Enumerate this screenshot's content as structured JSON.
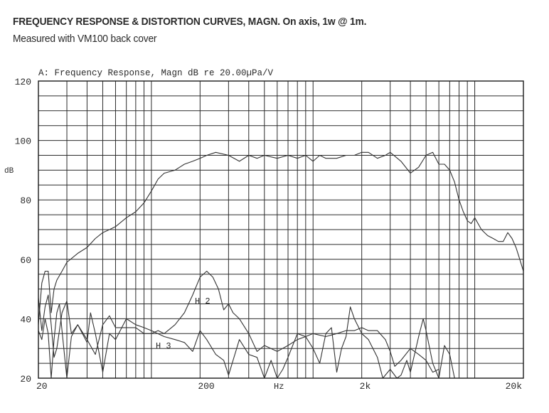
{
  "header": {
    "title": "FREQUENCY RESPONSE & DISTORTION CURVES, MAGN. On axis, 1w @ 1m.",
    "subtitle": "Measured with VM100 back cover"
  },
  "colors": {
    "curve": "#333333",
    "grid": "#2b2b2b",
    "text": "#2a2a2a"
  },
  "chart_data": {
    "type": "line",
    "title": "A: Frequency Response, Magn dB re 20.00µPa/V",
    "xlabel": "Hz",
    "ylabel": "dB",
    "xscale": "log",
    "xlim": [
      20,
      20000
    ],
    "ylim": [
      20,
      120
    ],
    "grid": true,
    "xticks": [
      {
        "value": 20,
        "label": "20"
      },
      {
        "value": 200,
        "label": "200"
      },
      {
        "value": 2000,
        "label": "2k"
      },
      {
        "value": 20000,
        "label": "20k"
      }
    ],
    "yticks": [
      {
        "value": 20,
        "label": "20"
      },
      {
        "value": 40,
        "label": "40"
      },
      {
        "value": 60,
        "label": "60"
      },
      {
        "value": 80,
        "label": "80"
      },
      {
        "value": 100,
        "label": "100"
      },
      {
        "value": 120,
        "label": "120"
      }
    ],
    "series": [
      {
        "values": [
          [
            20,
            38
          ],
          [
            21,
            52
          ],
          [
            22,
            56
          ],
          [
            23,
            56
          ],
          [
            24,
            42
          ],
          [
            25,
            50
          ],
          [
            26,
            53
          ],
          [
            28,
            56
          ],
          [
            30,
            59
          ],
          [
            35,
            62
          ],
          [
            40,
            64
          ],
          [
            45,
            67
          ],
          [
            50,
            69
          ],
          [
            55,
            70
          ],
          [
            60,
            71
          ],
          [
            70,
            74
          ],
          [
            80,
            76
          ],
          [
            90,
            79
          ],
          [
            100,
            83
          ],
          [
            110,
            87
          ],
          [
            120,
            89
          ],
          [
            140,
            90
          ],
          [
            160,
            92
          ],
          [
            180,
            93
          ],
          [
            200,
            94
          ],
          [
            220,
            95
          ],
          [
            250,
            96
          ],
          [
            300,
            95
          ],
          [
            350,
            93
          ],
          [
            400,
            95
          ],
          [
            450,
            94
          ],
          [
            500,
            95
          ],
          [
            600,
            94
          ],
          [
            700,
            95
          ],
          [
            800,
            94
          ],
          [
            900,
            95
          ],
          [
            1000,
            93
          ],
          [
            1100,
            95
          ],
          [
            1200,
            94
          ],
          [
            1400,
            94
          ],
          [
            1600,
            95
          ],
          [
            1800,
            95
          ],
          [
            2000,
            96
          ],
          [
            2200,
            96
          ],
          [
            2500,
            94
          ],
          [
            2800,
            95
          ],
          [
            3000,
            96
          ],
          [
            3500,
            93
          ],
          [
            4000,
            89
          ],
          [
            4500,
            91
          ],
          [
            5000,
            95
          ],
          [
            5500,
            96
          ],
          [
            6000,
            92
          ],
          [
            6500,
            92
          ],
          [
            7000,
            90
          ],
          [
            7500,
            86
          ],
          [
            8000,
            80
          ],
          [
            8500,
            76
          ],
          [
            9000,
            73
          ],
          [
            9500,
            72
          ],
          [
            10000,
            74
          ],
          [
            11000,
            70
          ],
          [
            12000,
            68
          ],
          [
            13000,
            67
          ],
          [
            14000,
            66
          ],
          [
            15000,
            66
          ],
          [
            16000,
            69
          ],
          [
            17000,
            67
          ],
          [
            18000,
            64
          ],
          [
            19000,
            60
          ],
          [
            20000,
            56
          ]
        ]
      },
      {
        "name": "H2",
        "values": [
          [
            20,
            47
          ],
          [
            21,
            36
          ],
          [
            22,
            44
          ],
          [
            23,
            48
          ],
          [
            24,
            38
          ],
          [
            25,
            27
          ],
          [
            26,
            30
          ],
          [
            28,
            42
          ],
          [
            30,
            46
          ],
          [
            32,
            35
          ],
          [
            35,
            38
          ],
          [
            40,
            33
          ],
          [
            45,
            28
          ],
          [
            50,
            38
          ],
          [
            55,
            41
          ],
          [
            60,
            37
          ],
          [
            70,
            37
          ],
          [
            80,
            37
          ],
          [
            90,
            35
          ],
          [
            100,
            35
          ],
          [
            110,
            36
          ],
          [
            120,
            35
          ],
          [
            140,
            38
          ],
          [
            160,
            42
          ],
          [
            180,
            48
          ],
          [
            200,
            54
          ],
          [
            220,
            56
          ],
          [
            240,
            54
          ],
          [
            260,
            50
          ],
          [
            280,
            43
          ],
          [
            300,
            45
          ],
          [
            320,
            42
          ],
          [
            350,
            40
          ],
          [
            400,
            35
          ],
          [
            450,
            29
          ],
          [
            500,
            31
          ],
          [
            600,
            29
          ],
          [
            700,
            31
          ],
          [
            800,
            33
          ],
          [
            900,
            34
          ],
          [
            1000,
            35
          ],
          [
            1200,
            34
          ],
          [
            1400,
            35
          ],
          [
            1600,
            36
          ],
          [
            1800,
            36
          ],
          [
            2000,
            37
          ],
          [
            2200,
            36
          ],
          [
            2500,
            36
          ],
          [
            2800,
            33
          ],
          [
            3000,
            29
          ],
          [
            3200,
            24
          ],
          [
            3500,
            26
          ],
          [
            4000,
            30
          ],
          [
            4500,
            28
          ],
          [
            5000,
            26
          ],
          [
            5500,
            22
          ],
          [
            6000,
            23
          ]
        ]
      },
      {
        "name": "H3",
        "values": [
          [
            20,
            36
          ],
          [
            21,
            33
          ],
          [
            22,
            40
          ],
          [
            23,
            35
          ],
          [
            24,
            18
          ],
          [
            25,
            33
          ],
          [
            26,
            42
          ],
          [
            27,
            45
          ],
          [
            28,
            36
          ],
          [
            30,
            20
          ],
          [
            32,
            34
          ],
          [
            35,
            38
          ],
          [
            40,
            32
          ],
          [
            42,
            42
          ],
          [
            45,
            35
          ],
          [
            50,
            22
          ],
          [
            55,
            35
          ],
          [
            60,
            33
          ],
          [
            70,
            40
          ],
          [
            80,
            38
          ],
          [
            90,
            37
          ],
          [
            100,
            36
          ],
          [
            120,
            34
          ],
          [
            140,
            33
          ],
          [
            160,
            32
          ],
          [
            180,
            29
          ],
          [
            200,
            36
          ],
          [
            220,
            33
          ],
          [
            250,
            28
          ],
          [
            280,
            26
          ],
          [
            300,
            21
          ],
          [
            350,
            33
          ],
          [
            400,
            28
          ],
          [
            450,
            27
          ],
          [
            500,
            20
          ],
          [
            550,
            26
          ],
          [
            600,
            18
          ],
          [
            650,
            23
          ],
          [
            700,
            27
          ],
          [
            800,
            35
          ],
          [
            900,
            34
          ],
          [
            1000,
            30
          ],
          [
            1100,
            25
          ],
          [
            1200,
            35
          ],
          [
            1300,
            37
          ],
          [
            1400,
            22
          ],
          [
            1500,
            30
          ],
          [
            1600,
            34
          ],
          [
            1700,
            44
          ],
          [
            1800,
            40
          ],
          [
            2000,
            35
          ],
          [
            2200,
            33
          ],
          [
            2500,
            27
          ],
          [
            2700,
            20
          ],
          [
            3000,
            23
          ],
          [
            3300,
            18
          ],
          [
            3500,
            21
          ],
          [
            3800,
            26
          ],
          [
            4000,
            22
          ],
          [
            4500,
            34
          ],
          [
            4800,
            40
          ],
          [
            5000,
            36
          ],
          [
            5500,
            25
          ],
          [
            6000,
            20
          ],
          [
            6500,
            31
          ],
          [
            7000,
            28
          ],
          [
            7500,
            20
          ]
        ]
      }
    ],
    "annotations": [
      "H 2",
      "H 3"
    ]
  }
}
